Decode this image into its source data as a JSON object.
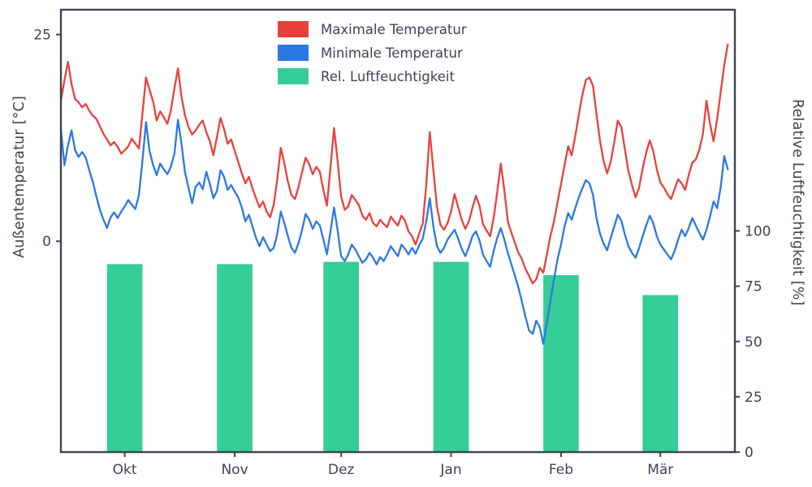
{
  "figure": {
    "background": "#ffffff",
    "text_color": "#3d4450",
    "spine_color": "#3d4450"
  },
  "chart_data": {
    "type": "line+bar",
    "title": "",
    "x_axis": {
      "unit": "day-index (mid-Sep to late-Mar, daily)",
      "range": [
        0,
        190
      ],
      "ticks": [
        {
          "day": 18,
          "label": "Okt"
        },
        {
          "day": 49,
          "label": "Nov"
        },
        {
          "day": 79,
          "label": "Dez"
        },
        {
          "day": 110,
          "label": "Jan"
        },
        {
          "day": 141,
          "label": "Feb"
        },
        {
          "day": 169,
          "label": "Mär"
        }
      ]
    },
    "y_left": {
      "label": "Außentemperatur [°C]",
      "range": [
        -25.5,
        28
      ],
      "ticks": [
        0,
        25
      ]
    },
    "y_right": {
      "label": "Relative Luftfeuchtigkeit [%]",
      "range": [
        0,
        200
      ],
      "ticks": [
        0,
        25,
        50,
        75,
        100
      ]
    },
    "legend_position": "upper center-left, no frame",
    "series": [
      {
        "name": "Maximale Temperatur",
        "type": "line",
        "color": "#e8413c",
        "axis": "left",
        "x_start": 0,
        "x_step": 1,
        "values": [
          17.0,
          19.5,
          21.7,
          19.0,
          17.2,
          16.8,
          16.2,
          16.6,
          15.8,
          15.2,
          14.8,
          13.9,
          13.0,
          12.3,
          11.6,
          12.0,
          11.4,
          10.6,
          11.0,
          11.5,
          12.4,
          11.8,
          11.2,
          15.5,
          19.8,
          18.3,
          16.9,
          14.6,
          15.7,
          15.0,
          14.2,
          15.8,
          18.5,
          20.9,
          17.5,
          15.2,
          13.8,
          12.9,
          13.4,
          14.1,
          14.6,
          13.2,
          12.1,
          10.4,
          12.6,
          14.9,
          13.6,
          11.8,
          12.3,
          10.9,
          9.6,
          8.2,
          7.0,
          7.8,
          6.4,
          5.2,
          4.1,
          4.8,
          3.6,
          2.9,
          4.4,
          7.5,
          11.3,
          9.4,
          7.2,
          5.6,
          5.1,
          6.6,
          8.4,
          10.1,
          9.3,
          8.1,
          9.0,
          8.4,
          6.2,
          4.3,
          8.9,
          13.7,
          9.8,
          5.4,
          3.8,
          4.2,
          5.6,
          5.0,
          4.4,
          3.1,
          2.6,
          3.4,
          2.2,
          1.8,
          2.6,
          2.1,
          1.7,
          3.0,
          2.4,
          1.9,
          3.1,
          2.5,
          1.2,
          0.6,
          -0.4,
          0.9,
          2.1,
          6.8,
          13.2,
          8.6,
          4.2,
          2.0,
          1.4,
          2.2,
          3.6,
          5.7,
          4.1,
          2.6,
          1.5,
          2.4,
          4.0,
          5.5,
          4.3,
          2.1,
          1.3,
          0.6,
          2.8,
          5.9,
          9.4,
          6.2,
          2.4,
          1.0,
          -0.2,
          -1.4,
          -2.2,
          -3.4,
          -4.2,
          -5.1,
          -4.6,
          -3.2,
          -3.8,
          -1.6,
          0.6,
          2.4,
          4.7,
          6.9,
          9.2,
          11.5,
          10.4,
          12.7,
          15.3,
          17.7,
          19.5,
          19.8,
          18.8,
          15.4,
          12.1,
          9.7,
          8.2,
          9.6,
          12.0,
          14.6,
          13.8,
          11.1,
          8.5,
          6.8,
          5.3,
          6.5,
          8.8,
          10.7,
          12.2,
          10.9,
          8.7,
          7.1,
          6.5,
          5.7,
          5.1,
          6.3,
          7.5,
          7.0,
          6.2,
          8.0,
          9.5,
          9.9,
          11.1,
          13.0,
          17.0,
          14.2,
          12.1,
          14.8,
          18.0,
          21.3,
          23.8
        ]
      },
      {
        "name": "Minimale Temperatur",
        "type": "line",
        "color": "#2b78e4",
        "axis": "left",
        "x_start": 0,
        "x_step": 1,
        "values": [
          13.5,
          9.2,
          11.6,
          13.4,
          11.0,
          10.2,
          10.8,
          10.1,
          8.6,
          7.2,
          5.4,
          3.8,
          2.6,
          1.6,
          2.9,
          3.5,
          2.8,
          3.6,
          4.2,
          5.0,
          4.4,
          3.9,
          5.6,
          9.8,
          14.4,
          10.9,
          9.2,
          8.0,
          9.4,
          8.7,
          8.1,
          9.0,
          10.6,
          14.7,
          11.8,
          8.3,
          6.4,
          4.6,
          6.6,
          7.1,
          6.3,
          8.4,
          6.9,
          5.2,
          6.1,
          8.6,
          7.8,
          6.2,
          6.8,
          6.0,
          5.3,
          4.1,
          2.4,
          3.2,
          1.8,
          0.4,
          -0.6,
          0.5,
          -0.4,
          -1.2,
          -0.8,
          0.9,
          3.6,
          2.2,
          0.6,
          -0.8,
          -1.4,
          -0.2,
          1.4,
          3.3,
          2.6,
          1.5,
          2.4,
          1.9,
          0.2,
          -1.6,
          1.2,
          4.1,
          1.4,
          -1.8,
          -2.4,
          -1.6,
          -0.4,
          -1.0,
          -1.8,
          -2.6,
          -2.2,
          -1.4,
          -2.0,
          -2.8,
          -1.9,
          -2.4,
          -1.6,
          -0.6,
          -1.2,
          -1.8,
          -0.4,
          -0.9,
          -1.6,
          -0.8,
          -1.5,
          -0.5,
          0.3,
          2.4,
          5.2,
          1.8,
          -0.6,
          -1.4,
          -0.8,
          0.2,
          0.8,
          1.4,
          0.3,
          -0.9,
          -1.8,
          -0.7,
          0.6,
          1.2,
          0.1,
          -1.6,
          -2.4,
          -3.1,
          -1.2,
          0.4,
          1.6,
          0.2,
          -1.4,
          -2.8,
          -4.2,
          -5.6,
          -7.4,
          -9.2,
          -10.8,
          -11.2,
          -9.6,
          -10.4,
          -12.4,
          -9.8,
          -7.2,
          -4.6,
          -2.2,
          -0.4,
          1.8,
          3.4,
          2.6,
          4.0,
          5.3,
          6.4,
          7.4,
          7.0,
          5.6,
          2.8,
          0.9,
          -0.3,
          -1.1,
          0.4,
          1.8,
          3.2,
          2.5,
          0.8,
          -0.6,
          -1.4,
          -2.0,
          -0.8,
          0.6,
          1.9,
          3.1,
          2.2,
          0.6,
          -0.4,
          -1.0,
          -1.6,
          -2.2,
          -1.2,
          0.2,
          1.4,
          0.6,
          1.6,
          2.8,
          1.9,
          1.0,
          0.2,
          1.4,
          3.0,
          4.8,
          4.0,
          6.5,
          10.3,
          8.7
        ]
      },
      {
        "name": "Rel. Luftfeuchtigkeit",
        "type": "bar",
        "color": "#35ce96",
        "axis": "right",
        "bar_width_days": 10,
        "points": [
          {
            "month": "Okt",
            "day": 18,
            "value": 85
          },
          {
            "month": "Nov",
            "day": 49,
            "value": 85
          },
          {
            "month": "Dez",
            "day": 79,
            "value": 86
          },
          {
            "month": "Jan",
            "day": 110,
            "value": 86
          },
          {
            "month": "Feb",
            "day": 141,
            "value": 80
          },
          {
            "month": "Mär",
            "day": 169,
            "value": 71
          }
        ]
      }
    ]
  }
}
